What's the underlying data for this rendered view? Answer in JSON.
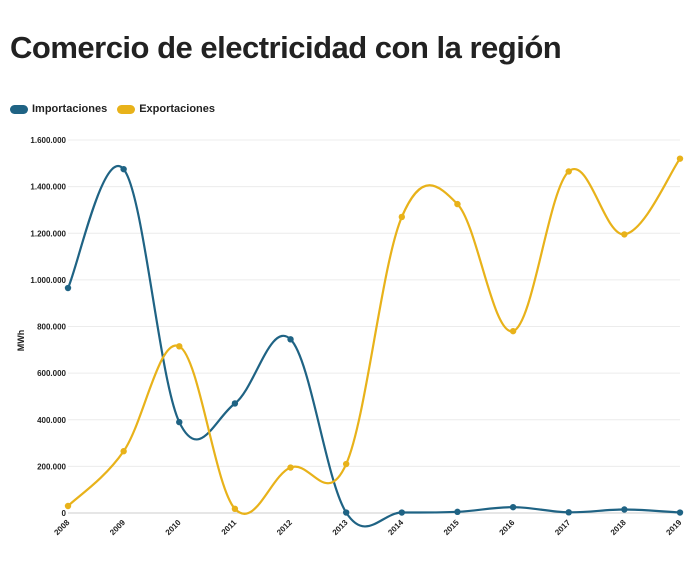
{
  "chart_data": {
    "type": "line",
    "title": "Comercio de electricidad con la región",
    "xlabel": "",
    "ylabel": "MWh",
    "categories": [
      "2008",
      "2009",
      "2010",
      "2011",
      "2012",
      "2013",
      "2014",
      "2015",
      "2016",
      "2017",
      "2018",
      "2019"
    ],
    "ylim": [
      0,
      1600000
    ],
    "yticks": [
      0,
      200000,
      400000,
      600000,
      800000,
      1000000,
      1200000,
      1400000,
      1600000
    ],
    "ytick_labels": [
      "0",
      "200.000",
      "400.000",
      "600.000",
      "800.000",
      "1.000.000",
      "1.200.000",
      "1.400.000",
      "1.600.000"
    ],
    "grid": true,
    "legend_position": "top-left",
    "series": [
      {
        "name": "Importaciones",
        "color": "#1f6384",
        "values": [
          965000,
          1475000,
          390000,
          470000,
          745000,
          2000,
          2000,
          5000,
          25000,
          3000,
          15000,
          2000
        ]
      },
      {
        "name": "Exportaciones",
        "color": "#e8b21a",
        "values": [
          30000,
          265000,
          715000,
          18000,
          195000,
          210000,
          1270000,
          1325000,
          780000,
          1465000,
          1195000,
          1520000
        ]
      }
    ]
  }
}
